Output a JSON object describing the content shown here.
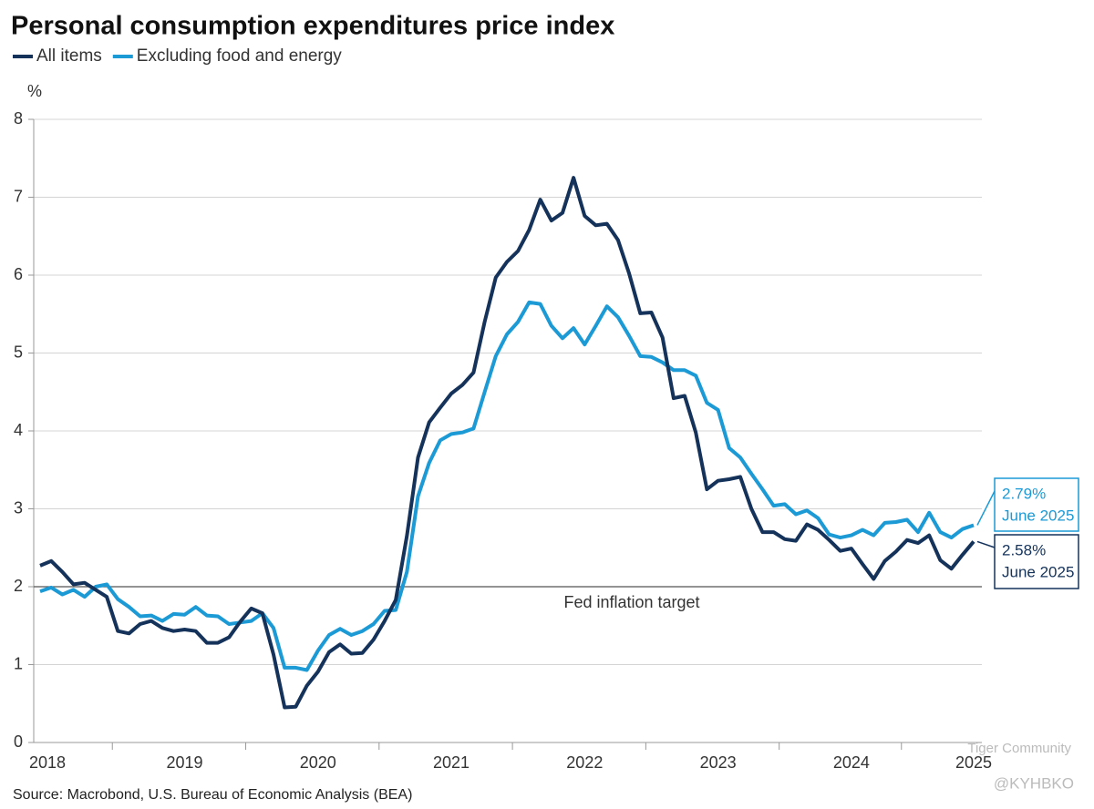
{
  "chart_data": {
    "type": "line",
    "title": "Personal consumption expenditures price index",
    "y_label": "%",
    "source": "Source: Macrobond, U.S. Bureau of Economic Analysis (BEA)",
    "watermark": [
      "Tiger Community",
      "@KYHBKO"
    ],
    "categories": [
      "2018",
      null,
      null,
      null,
      null,
      null,
      null,
      null,
      null,
      null,
      null,
      null,
      null,
      "2019",
      null,
      null,
      null,
      null,
      null,
      null,
      null,
      null,
      null,
      null,
      null,
      "2020",
      null,
      null,
      null,
      null,
      null,
      null,
      null,
      null,
      null,
      null,
      null,
      "2021",
      null,
      null,
      null,
      null,
      null,
      null,
      null,
      null,
      null,
      null,
      null,
      "2022",
      null,
      null,
      null,
      null,
      null,
      null,
      null,
      null,
      null,
      null,
      null,
      "2023",
      null,
      null,
      null,
      null,
      null,
      null,
      null,
      null,
      null,
      null,
      null,
      "2024",
      null,
      null,
      null,
      null,
      null,
      null,
      null,
      null,
      null,
      null,
      "2025"
    ],
    "series": [
      {
        "name": "All items",
        "color": "#14325a",
        "values": [
          2.27,
          2.33,
          2.19,
          2.03,
          2.05,
          1.96,
          1.87,
          1.43,
          1.4,
          1.52,
          1.56,
          1.47,
          1.43,
          1.45,
          1.43,
          1.28,
          1.28,
          1.35,
          1.55,
          1.72,
          1.66,
          1.13,
          0.45,
          0.46,
          0.73,
          0.91,
          1.16,
          1.26,
          1.14,
          1.15,
          1.32,
          1.56,
          1.83,
          2.65,
          3.66,
          4.11,
          4.3,
          4.48,
          4.59,
          4.75,
          5.4,
          5.97,
          6.17,
          6.31,
          6.58,
          6.97,
          6.7,
          6.8,
          7.25,
          6.76,
          6.64,
          6.66,
          6.45,
          6.02,
          5.51,
          5.52,
          5.2,
          4.42,
          4.45,
          3.98,
          3.25,
          3.36,
          3.38,
          3.41,
          3.0,
          2.7,
          2.7,
          2.61,
          2.59,
          2.8,
          2.73,
          2.6,
          2.46,
          2.49,
          2.29,
          2.1,
          2.33,
          2.45,
          2.6,
          2.56,
          2.66,
          2.34,
          2.23,
          2.41,
          2.58
        ]
      },
      {
        "name": "Excluding food and energy",
        "color": "#1b9ad6",
        "values": [
          1.94,
          1.99,
          1.9,
          1.96,
          1.87,
          2.0,
          2.03,
          1.84,
          1.74,
          1.62,
          1.63,
          1.56,
          1.65,
          1.64,
          1.74,
          1.63,
          1.62,
          1.52,
          1.54,
          1.56,
          1.66,
          1.47,
          0.96,
          0.96,
          0.93,
          1.18,
          1.38,
          1.46,
          1.38,
          1.43,
          1.52,
          1.69,
          1.7,
          2.19,
          3.16,
          3.59,
          3.88,
          3.96,
          3.98,
          4.03,
          4.5,
          4.96,
          5.24,
          5.4,
          5.65,
          5.63,
          5.35,
          5.19,
          5.32,
          5.11,
          5.35,
          5.6,
          5.46,
          5.22,
          4.96,
          4.95,
          4.88,
          4.78,
          4.78,
          4.71,
          4.36,
          4.27,
          3.78,
          3.66,
          3.45,
          3.25,
          3.04,
          3.06,
          2.93,
          2.98,
          2.88,
          2.67,
          2.63,
          2.66,
          2.73,
          2.66,
          2.82,
          2.83,
          2.86,
          2.7,
          2.95,
          2.7,
          2.63,
          2.74,
          2.79
        ]
      }
    ],
    "annotations": [
      {
        "value": 2.79,
        "label": "2.79%",
        "note": "June 2025",
        "color": "#1b9ad6"
      },
      {
        "value": 2.58,
        "label": "2.58%",
        "note": "June 2025",
        "color": "#14325a"
      }
    ],
    "target": {
      "value": 2,
      "label": "Fed inflation target"
    },
    "ylim": [
      0,
      8
    ],
    "yticks": [
      0,
      1,
      2,
      3,
      4,
      5,
      6,
      7,
      8
    ],
    "grid": true
  }
}
